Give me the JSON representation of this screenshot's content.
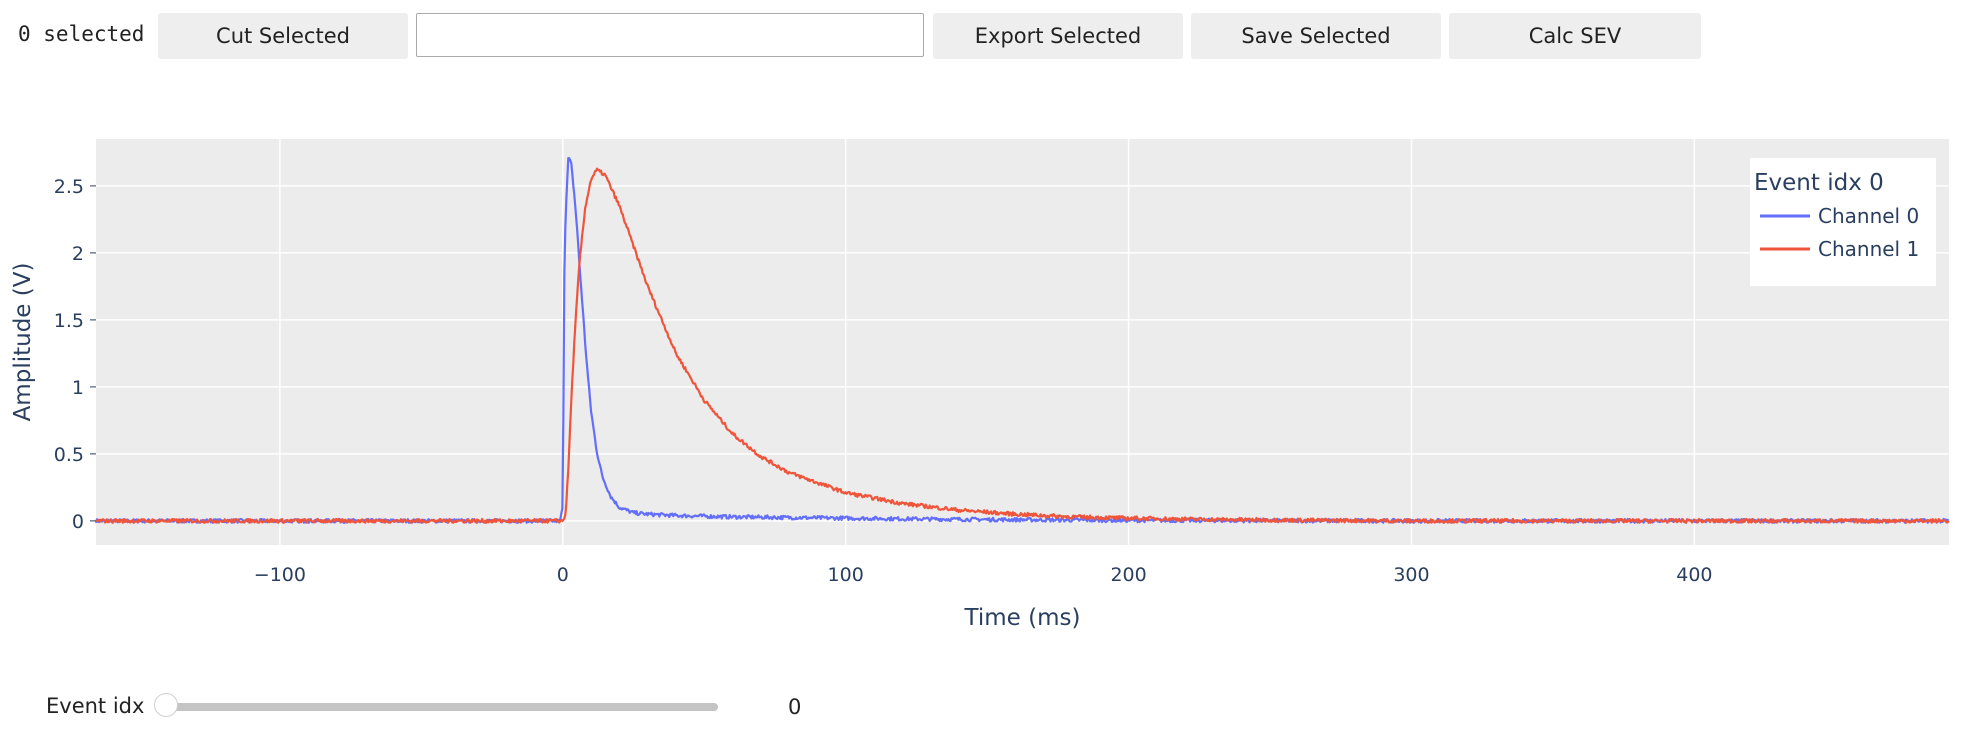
{
  "toolbar": {
    "selected_text": "0 selected",
    "cut_label": "Cut Selected",
    "text_value": "",
    "export_label": "Export Selected",
    "save_label": "Save Selected",
    "calc_label": "Calc SEV"
  },
  "slider": {
    "label": "Event idx",
    "value": "0",
    "fraction": 0
  },
  "chart_data": {
    "type": "line",
    "xlabel": "Time (ms)",
    "ylabel": "Amplitude (V)",
    "xlim": [
      -165,
      490
    ],
    "ylim": [
      -0.18,
      2.85
    ],
    "xticks": [
      -100,
      0,
      100,
      200,
      300,
      400
    ],
    "xtick_labels": [
      "−100",
      "0",
      "100",
      "200",
      "300",
      "400"
    ],
    "yticks": [
      0,
      0.5,
      1,
      1.5,
      2,
      2.5
    ],
    "ytick_labels": [
      "0",
      "0.5",
      "1",
      "1.5",
      "2",
      "2.5"
    ],
    "grid": true,
    "legend_title": "Event idx 0",
    "legend_position": "top-right",
    "series": [
      {
        "name": "Channel 0",
        "color": "#636efa",
        "x": [
          -165,
          -1,
          0,
          0.5,
          1,
          2,
          3,
          4,
          5,
          6,
          7,
          8,
          9,
          10,
          12,
          14,
          17,
          20,
          25,
          30,
          40,
          50,
          60,
          80,
          100,
          120,
          150,
          190,
          250,
          300,
          400,
          490
        ],
        "y": [
          0,
          0,
          0.1,
          1.8,
          2.3,
          2.72,
          2.66,
          2.45,
          2.2,
          1.88,
          1.6,
          1.3,
          1.05,
          0.82,
          0.52,
          0.33,
          0.18,
          0.1,
          0.06,
          0.05,
          0.04,
          0.035,
          0.03,
          0.025,
          0.02,
          0.015,
          0.01,
          0.005,
          0.002,
          0.0,
          0.0,
          0.0
        ]
      },
      {
        "name": "Channel 1",
        "color": "#ef553b",
        "x": [
          -165,
          0,
          1,
          2,
          3,
          4,
          5,
          6,
          8,
          10,
          12,
          15,
          20,
          25,
          30,
          40,
          50,
          60,
          70,
          80,
          100,
          120,
          140,
          160,
          180,
          200,
          230,
          260,
          300,
          400,
          490
        ],
        "y": [
          0,
          0,
          0.05,
          0.4,
          0.9,
          1.3,
          1.65,
          1.95,
          2.35,
          2.55,
          2.62,
          2.58,
          2.35,
          2.05,
          1.75,
          1.25,
          0.9,
          0.65,
          0.48,
          0.36,
          0.21,
          0.13,
          0.08,
          0.05,
          0.03,
          0.02,
          0.01,
          0.005,
          0.0,
          0.0,
          0.0
        ]
      }
    ]
  }
}
